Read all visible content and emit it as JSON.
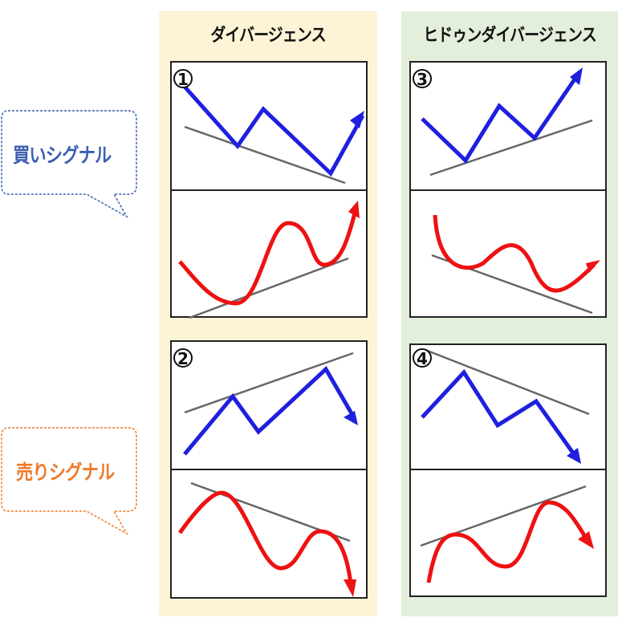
{
  "columns": [
    {
      "title": "ダイバージェンス"
    },
    {
      "title": "ヒドゥンダイバージェンス"
    }
  ],
  "signals": {
    "buy": {
      "label": "買いシグナル",
      "color": "#3a5fb0"
    },
    "sell": {
      "label": "売りシグナル",
      "color": "#ee7a2a"
    }
  },
  "panels": [
    {
      "number": "1"
    },
    {
      "number": "2"
    },
    {
      "number": "3"
    },
    {
      "number": "4"
    }
  ],
  "colors": {
    "price_line": "#1f1fe0",
    "oscillator_line": "#ee1111",
    "trend_line": "#666666",
    "divergence_bg": "#fdf3d6",
    "hidden_divergence_bg": "#e3eedb"
  }
}
